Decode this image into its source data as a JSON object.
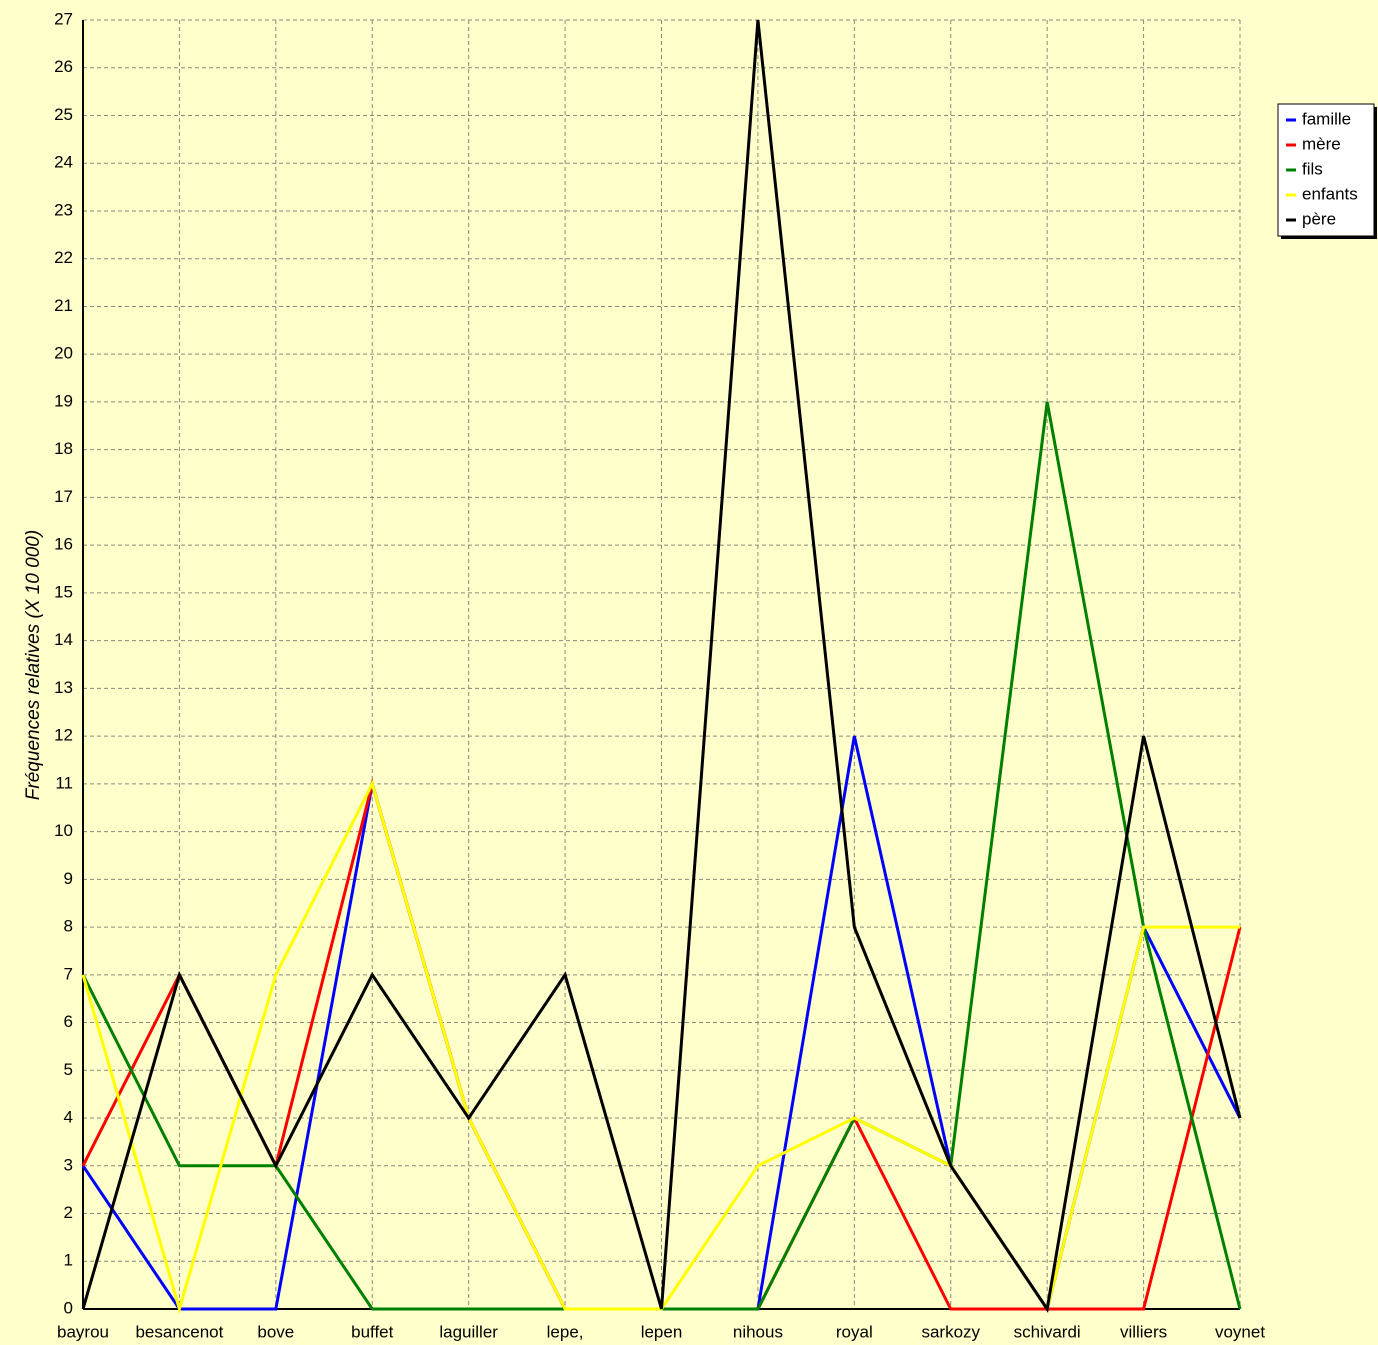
{
  "chart_data": {
    "type": "line",
    "y_label": "Fréquences relatives (X 10 000)",
    "categories": [
      "bayrou",
      "besancenot",
      "bove",
      "buffet",
      "laguiller",
      "lepe,",
      "lepen",
      "nihous",
      "royal",
      "sarkozy",
      "schivardi",
      "villiers",
      "voynet"
    ],
    "series": [
      {
        "name": "famille",
        "color": "#0000ff",
        "values": [
          3,
          0,
          0,
          11,
          4,
          0,
          0,
          0,
          12,
          3,
          0,
          8,
          4
        ]
      },
      {
        "name": "mère",
        "color": "#ff0000",
        "values": [
          3,
          7,
          3,
          11,
          4,
          0,
          0,
          0,
          4,
          0,
          0,
          0,
          8
        ]
      },
      {
        "name": "fils",
        "color": "#008000",
        "values": [
          7,
          3,
          3,
          0,
          0,
          0,
          0,
          0,
          4,
          3,
          19,
          8,
          0
        ]
      },
      {
        "name": "enfants",
        "color": "#ffff00",
        "values": [
          7,
          0,
          7,
          11,
          4,
          0,
          0,
          3,
          4,
          3,
          0,
          8,
          8
        ]
      },
      {
        "name": "père",
        "color": "#000000",
        "values": [
          0,
          7,
          3,
          7,
          4,
          7,
          0,
          27,
          8,
          3,
          0,
          12,
          4
        ]
      }
    ],
    "ylim": [
      0,
      27
    ],
    "yticks": [
      0,
      1,
      2,
      3,
      4,
      5,
      6,
      7,
      8,
      9,
      10,
      11,
      12,
      13,
      14,
      15,
      16,
      17,
      18,
      19,
      20,
      21,
      22,
      23,
      24,
      25,
      26,
      27
    ],
    "grid": true,
    "legend": "right"
  }
}
